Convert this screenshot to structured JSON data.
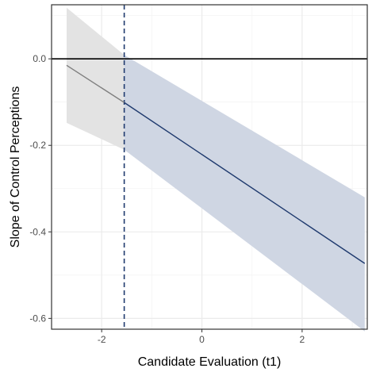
{
  "chart_data": {
    "type": "line",
    "xlabel": "Candidate Evaluation (t1)",
    "ylabel": "Slope of Control Perceptions",
    "xlim": [
      -3.0,
      3.3
    ],
    "ylim": [
      -0.625,
      0.125
    ],
    "x_ticks": [
      -2,
      0,
      2
    ],
    "x_tick_labels": [
      "-2",
      "0",
      "2"
    ],
    "y_ticks": [
      0.0,
      -0.2,
      -0.4,
      -0.6
    ],
    "y_tick_labels": [
      "0.0",
      "-0.2",
      "-0.4",
      "-0.6"
    ],
    "grid": true,
    "reference_line_y": 0.0,
    "threshold_x": -1.55,
    "series": [
      {
        "x": [
          -2.7,
          -1.55,
          3.25
        ],
        "y": [
          -0.015,
          -0.101,
          -0.473
        ],
        "ci_lower": [
          -0.148,
          -0.21,
          -0.63
        ],
        "ci_upper": [
          0.118,
          0.009,
          -0.32
        ]
      }
    ],
    "colors": {
      "nonsignificant_line": "#7f7f7f",
      "significant_line": "#1f3a6e",
      "nonsignificant_band": "#e3e3e3",
      "significant_band": "#cfd6e3",
      "threshold_line": "#1f3a6e",
      "reference_line": "#000000",
      "panel_border": "#333333",
      "grid_major": "#ebebeb",
      "grid_minor": "#f4f4f4"
    }
  }
}
